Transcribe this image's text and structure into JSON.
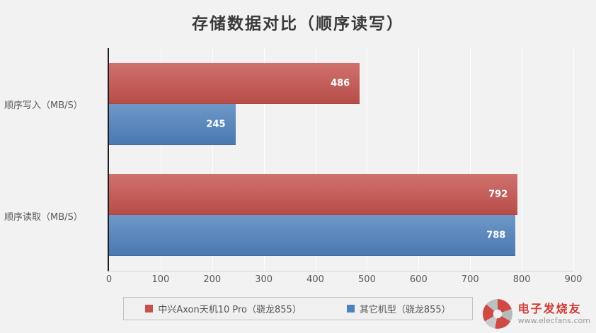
{
  "title": "存储数据对比（顺序读写）",
  "watermark": {
    "brand": "电子发烧友",
    "url": "www.elecfans.com"
  },
  "chart_data": {
    "type": "bar",
    "orientation": "horizontal",
    "title": "存储数据对比（顺序读写）",
    "categories": [
      "顺序写入（MB/S）",
      "顺序读取（MB/S）"
    ],
    "series": [
      {
        "name": "中兴Axon天机10 Pro（骁龙855）",
        "color": "#c5524e",
        "values": [
          486,
          792
        ]
      },
      {
        "name": "其它机型（骁龙855）",
        "color": "#4f81bd",
        "values": [
          245,
          788
        ]
      }
    ],
    "xlim": [
      0,
      900
    ],
    "xticks": [
      0,
      100,
      200,
      300,
      400,
      500,
      600,
      700,
      800,
      900
    ],
    "grid": true,
    "gridline_color": "#ffffff",
    "legend_position": "bottom"
  }
}
